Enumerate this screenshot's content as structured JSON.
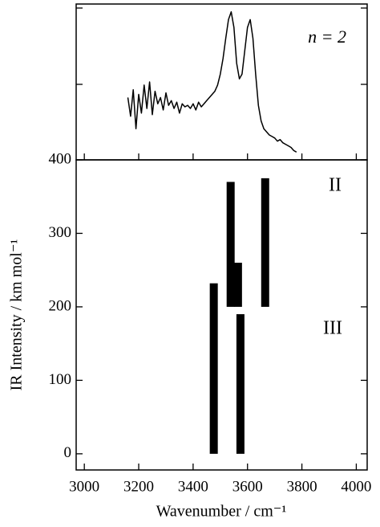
{
  "chart_data": [
    {
      "type": "line",
      "annotation": "n = 2",
      "xlim": [
        2970,
        4040
      ],
      "ylim": [
        0,
        1
      ],
      "x": [
        3160,
        3170,
        3180,
        3190,
        3200,
        3210,
        3220,
        3230,
        3240,
        3250,
        3260,
        3270,
        3280,
        3290,
        3300,
        3310,
        3320,
        3330,
        3340,
        3350,
        3360,
        3370,
        3380,
        3390,
        3400,
        3410,
        3420,
        3430,
        3440,
        3450,
        3460,
        3470,
        3480,
        3490,
        3500,
        3510,
        3520,
        3530,
        3540,
        3550,
        3560,
        3570,
        3580,
        3590,
        3600,
        3610,
        3620,
        3630,
        3640,
        3650,
        3660,
        3670,
        3680,
        3690,
        3700,
        3710,
        3720,
        3730,
        3740,
        3750,
        3760,
        3770,
        3780
      ],
      "values": [
        0.4,
        0.28,
        0.45,
        0.2,
        0.42,
        0.3,
        0.48,
        0.33,
        0.5,
        0.29,
        0.44,
        0.36,
        0.4,
        0.32,
        0.43,
        0.35,
        0.38,
        0.33,
        0.37,
        0.3,
        0.36,
        0.34,
        0.35,
        0.33,
        0.36,
        0.32,
        0.37,
        0.34,
        0.36,
        0.38,
        0.4,
        0.42,
        0.44,
        0.48,
        0.55,
        0.65,
        0.78,
        0.9,
        0.95,
        0.85,
        0.62,
        0.52,
        0.55,
        0.7,
        0.85,
        0.9,
        0.78,
        0.55,
        0.35,
        0.25,
        0.2,
        0.18,
        0.16,
        0.15,
        0.14,
        0.12,
        0.13,
        0.11,
        0.1,
        0.09,
        0.08,
        0.06,
        0.05
      ],
      "color": "#000000"
    },
    {
      "type": "bar",
      "x_label": "Wavenumber / cm⁻¹",
      "y_label": "IR Intensity / km mol⁻¹",
      "xlim": [
        2970,
        4040
      ],
      "ylim": [
        -22,
        400
      ],
      "xticks": [
        3000,
        3200,
        3400,
        3600,
        3800,
        4000
      ],
      "yticks": [
        0,
        100,
        200,
        300,
        400
      ],
      "series": [
        {
          "name": "II",
          "baseline": 200,
          "x": [
            3538,
            3565,
            3665
          ],
          "values": [
            170,
            60,
            175
          ],
          "color": "#000000"
        },
        {
          "name": "III",
          "baseline": 0,
          "x": [
            3476,
            3574
          ],
          "values": [
            232,
            190
          ],
          "color": "#000000"
        }
      ]
    }
  ]
}
